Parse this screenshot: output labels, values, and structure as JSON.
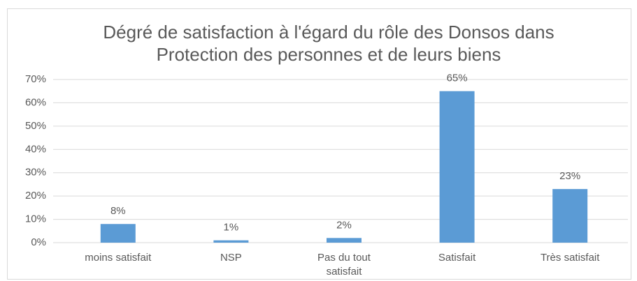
{
  "chart_data": {
    "type": "bar",
    "title": "Dégré de satisfaction à l'égard du rôle des Donsos dans Protection des personnes et de leurs biens",
    "categories": [
      "moins satisfait",
      "NSP",
      "Pas du tout satisfait",
      "Satisfait",
      "Très satisfait"
    ],
    "values": [
      8,
      1,
      2,
      65,
      23
    ],
    "value_labels": [
      "8%",
      "1%",
      "2%",
      "65%",
      "23%"
    ],
    "color": "#5b9bd5",
    "ylim": [
      0,
      70
    ],
    "yticks": [
      {
        "value": 0,
        "label": "0%"
      },
      {
        "value": 10,
        "label": "10%"
      },
      {
        "value": 20,
        "label": "20%"
      },
      {
        "value": 30,
        "label": "30%"
      },
      {
        "value": 40,
        "label": "40%"
      },
      {
        "value": 50,
        "label": "50%"
      },
      {
        "value": 60,
        "label": "60%"
      },
      {
        "value": 70,
        "label": "70%"
      }
    ],
    "grid": true
  }
}
